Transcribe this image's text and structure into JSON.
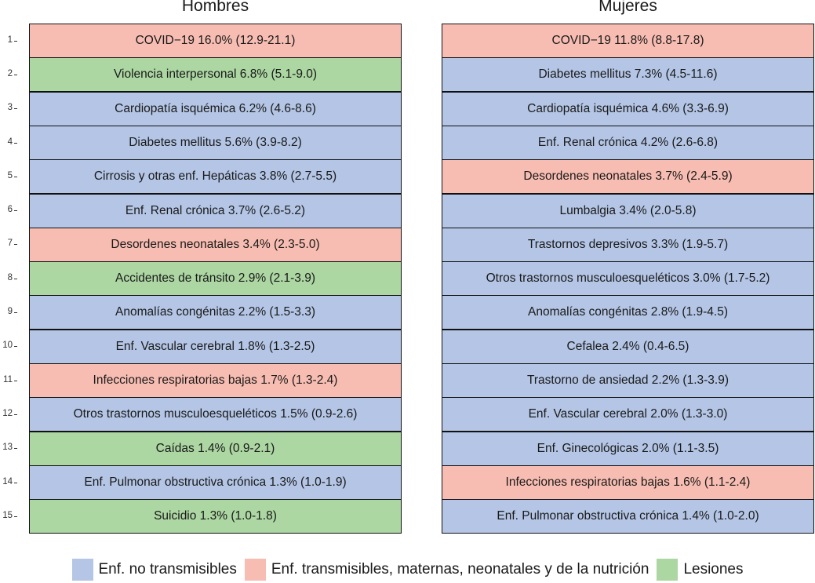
{
  "chart_data": {
    "type": "table",
    "colors": {
      "ncd": "#b4c5e5",
      "communicable": "#f8bdb2",
      "injuries": "#acd6a2"
    },
    "categories": {
      "ncd": "Enf. no transmisibles",
      "communicable": "Enf. transmisibles, maternas, neonatales y de la nutrición",
      "injuries": "Lesiones"
    },
    "legend_order": [
      "ncd",
      "communicable",
      "injuries"
    ],
    "ranks": [
      "1",
      "2",
      "3",
      "4",
      "5",
      "6",
      "7",
      "8",
      "9",
      "10",
      "11",
      "12",
      "13",
      "14",
      "15"
    ],
    "panels": [
      {
        "id": "men",
        "title": "Hombres",
        "rows": [
          {
            "label": "COVID−19 16.0% (12.9-21.1)",
            "category": "communicable",
            "value": 16.0
          },
          {
            "label": "Violencia interpersonal 6.8% (5.1-9.0)",
            "category": "injuries",
            "value": 6.8
          },
          {
            "label": "Cardiopatía isquémica 6.2% (4.6-8.6)",
            "category": "ncd",
            "value": 6.2
          },
          {
            "label": "Diabetes mellitus 5.6% (3.9-8.2)",
            "category": "ncd",
            "value": 5.6
          },
          {
            "label": "Cirrosis y otras enf. Hepáticas 3.8% (2.7-5.5)",
            "category": "ncd",
            "value": 3.8
          },
          {
            "label": "Enf. Renal crónica 3.7% (2.6-5.2)",
            "category": "ncd",
            "value": 3.7
          },
          {
            "label": "Desordenes neonatales 3.4% (2.3-5.0)",
            "category": "communicable",
            "value": 3.4
          },
          {
            "label": "Accidentes de tránsito 2.9% (2.1-3.9)",
            "category": "injuries",
            "value": 2.9
          },
          {
            "label": "Anomalías congénitas 2.2% (1.5-3.3)",
            "category": "ncd",
            "value": 2.2
          },
          {
            "label": "Enf. Vascular cerebral 1.8% (1.3-2.5)",
            "category": "ncd",
            "value": 1.8
          },
          {
            "label": "Infecciones respiratorias bajas 1.7% (1.3-2.4)",
            "category": "communicable",
            "value": 1.7
          },
          {
            "label": "Otros trastornos musculoesqueléticos 1.5% (0.9-2.6)",
            "category": "ncd",
            "value": 1.5
          },
          {
            "label": "Caídas 1.4% (0.9-2.1)",
            "category": "injuries",
            "value": 1.4
          },
          {
            "label": "Enf. Pulmonar obstructiva crónica 1.3% (1.0-1.9)",
            "category": "ncd",
            "value": 1.3
          },
          {
            "label": "Suicidio 1.3% (1.0-1.8)",
            "category": "injuries",
            "value": 1.3
          }
        ]
      },
      {
        "id": "women",
        "title": "Mujeres",
        "rows": [
          {
            "label": "COVID−19 11.8% (8.8-17.8)",
            "category": "communicable",
            "value": 11.8
          },
          {
            "label": "Diabetes mellitus 7.3% (4.5-11.6)",
            "category": "ncd",
            "value": 7.3
          },
          {
            "label": "Cardiopatía isquémica 4.6% (3.3-6.9)",
            "category": "ncd",
            "value": 4.6
          },
          {
            "label": "Enf. Renal crónica 4.2% (2.6-6.8)",
            "category": "ncd",
            "value": 4.2
          },
          {
            "label": "Desordenes neonatales 3.7% (2.4-5.9)",
            "category": "communicable",
            "value": 3.7
          },
          {
            "label": "Lumbalgia 3.4% (2.0-5.8)",
            "category": "ncd",
            "value": 3.4
          },
          {
            "label": "Trastornos depresivos 3.3% (1.9-5.7)",
            "category": "ncd",
            "value": 3.3
          },
          {
            "label": "Otros trastornos musculoesqueléticos 3.0% (1.7-5.2)",
            "category": "ncd",
            "value": 3.0
          },
          {
            "label": "Anomalías congénitas 2.8% (1.9-4.5)",
            "category": "ncd",
            "value": 2.8
          },
          {
            "label": "Cefalea 2.4% (0.4-6.5)",
            "category": "ncd",
            "value": 2.4
          },
          {
            "label": "Trastorno de ansiedad 2.2% (1.3-3.9)",
            "category": "ncd",
            "value": 2.2
          },
          {
            "label": "Enf. Vascular cerebral 2.0% (1.3-3.0)",
            "category": "ncd",
            "value": 2.0
          },
          {
            "label": "Enf. Ginecológicas 2.0% (1.1-3.5)",
            "category": "ncd",
            "value": 2.0
          },
          {
            "label": "Infecciones respiratorias bajas 1.6% (1.1-2.4)",
            "category": "communicable",
            "value": 1.6
          },
          {
            "label": "Enf. Pulmonar obstructiva crónica 1.4% (1.0-2.0)",
            "category": "ncd",
            "value": 1.4
          }
        ]
      }
    ]
  }
}
